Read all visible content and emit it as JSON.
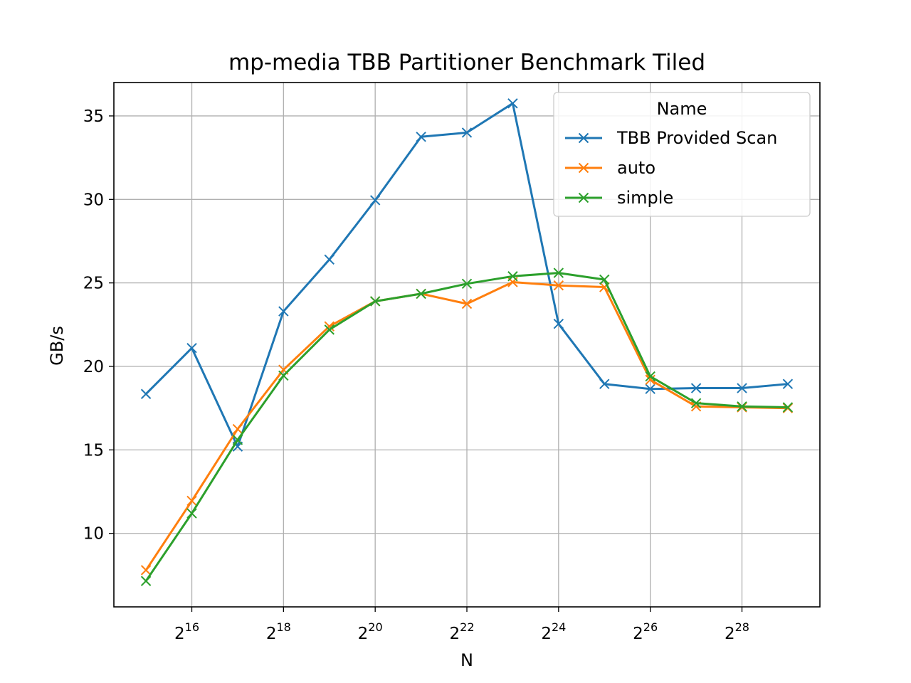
{
  "chart_data": {
    "type": "line",
    "title": "mp-media TBB Partitioner Benchmark Tiled",
    "xlabel": "N",
    "ylabel": "GB/s",
    "x_scale": "log2",
    "x": [
      32768,
      65536,
      131072,
      262144,
      524288,
      1048576,
      2097152,
      4194304,
      8388608,
      16777216,
      33554432,
      67108864,
      134217728,
      268435456,
      536870912
    ],
    "x_ticks": [
      {
        "value": 65536,
        "base": "2",
        "exp": "16"
      },
      {
        "value": 262144,
        "base": "2",
        "exp": "18"
      },
      {
        "value": 1048576,
        "base": "2",
        "exp": "20"
      },
      {
        "value": 4194304,
        "base": "2",
        "exp": "22"
      },
      {
        "value": 16777216,
        "base": "2",
        "exp": "24"
      },
      {
        "value": 67108864,
        "base": "2",
        "exp": "26"
      },
      {
        "value": 268435456,
        "base": "2",
        "exp": "28"
      }
    ],
    "y_ticks": [
      10,
      15,
      20,
      25,
      30,
      35
    ],
    "y_tick_labels": [
      "10",
      "15",
      "20",
      "25",
      "30",
      "35"
    ],
    "ylim": [
      5.6,
      37.0
    ],
    "grid": true,
    "marker": "x",
    "legend": {
      "title": "Name",
      "placement": "top-right"
    },
    "series": [
      {
        "name": "TBB Provided Scan",
        "color": "#1f77b4",
        "values": [
          18.35,
          21.1,
          15.2,
          23.3,
          26.4,
          29.95,
          33.75,
          34.0,
          35.75,
          22.55,
          18.95,
          18.65,
          18.7,
          18.7,
          18.95
        ]
      },
      {
        "name": "auto",
        "color": "#ff7f0e",
        "values": [
          7.8,
          11.95,
          16.25,
          19.8,
          22.4,
          23.9,
          24.35,
          23.75,
          25.05,
          24.85,
          24.75,
          19.2,
          17.6,
          17.55,
          17.5
        ]
      },
      {
        "name": "simple",
        "color": "#2ca02c",
        "values": [
          7.15,
          11.2,
          15.6,
          19.45,
          22.2,
          23.9,
          24.35,
          24.95,
          25.4,
          25.6,
          25.2,
          19.4,
          17.8,
          17.6,
          17.55
        ]
      }
    ]
  }
}
